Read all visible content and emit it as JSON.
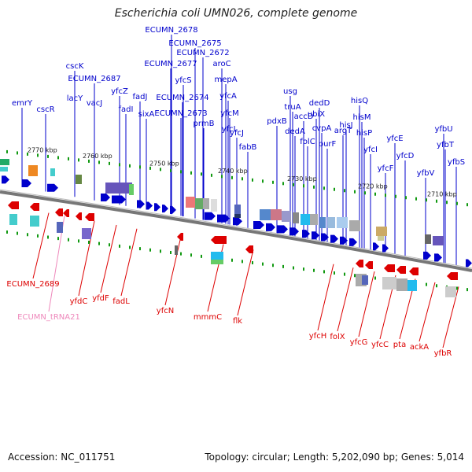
{
  "title": "Escherichia coli UMN026, complete genome",
  "footer": {
    "accession": "Accession: NC_011751",
    "summary": "Topology: circular; Length: 5,202,090 bp; Genes: 5,014"
  },
  "colors": {
    "forward": "#0000cc",
    "reverse": "#dd0000",
    "trna": "#ee88bb",
    "backbone": "#777777",
    "tick": "#119911"
  },
  "scale_labels": [
    "2770 kbp",
    "2760 kbp",
    "2750 kbp",
    "2740 kbp",
    "2730 kbp",
    "2720 kbp",
    "2710 kbp"
  ],
  "forward_genes": [
    "emrY",
    "cscR",
    "cscK",
    "ECUMN_2687",
    "lacY",
    "vacJ",
    "yfcZ",
    "fadI",
    "fadJ",
    "sixA",
    "ECUMN_2678",
    "ECUMN_2675",
    "ECUMN_2677",
    "ECUMN_2672",
    "yfcS",
    "aroC",
    "ECUMN_2674",
    "mepA",
    "ECUMN_2673",
    "yfcA",
    "prmB",
    "yfcM",
    "yfcL",
    "fabB",
    "yfcJ",
    "usg",
    "pdxB",
    "truA",
    "accD",
    "dedA",
    "dedD",
    "folC",
    "cvpA",
    "ubiX",
    "purF",
    "argT",
    "hisJ",
    "hisQ",
    "hisM",
    "hisP",
    "yfcI",
    "yfcE",
    "yfcF",
    "yfcD",
    "yfbV",
    "yfbU",
    "yfbT",
    "yfbS"
  ],
  "reverse_genes": [
    "ECUMN_2689",
    "ECUMN_tRNA21",
    "yfdC",
    "yfdF",
    "fadL",
    "yfcN",
    "mmmC",
    "flk",
    "yfcH",
    "folX",
    "yfcG",
    "yfcC",
    "pta",
    "ackA",
    "yfbR"
  ]
}
